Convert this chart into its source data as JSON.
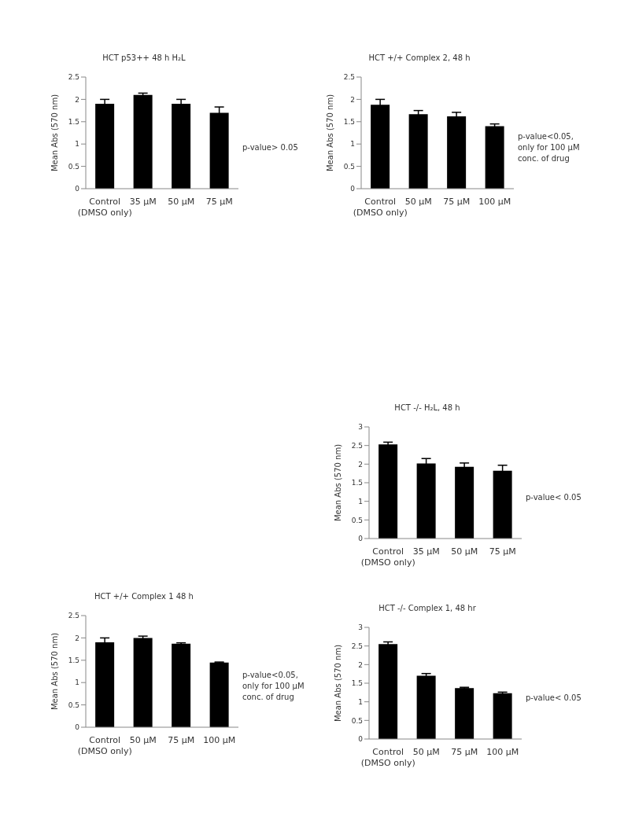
{
  "chart_data": [
    {
      "type": "bar",
      "title": "HCT p53++ 48 h H₂L",
      "ylabel": "Mean Abs (570 nm)",
      "categories": [
        "Control (DMSO only)",
        "35 µM",
        "50 µM",
        "75 µM"
      ],
      "values": [
        1.9,
        2.1,
        1.9,
        1.7
      ],
      "errors": [
        0.1,
        0.04,
        0.1,
        0.13
      ],
      "color": "#000000",
      "ylim": [
        0,
        2.5
      ],
      "yticks": [
        0,
        0.5,
        1,
        1.5,
        2,
        2.5
      ],
      "grid": false,
      "legend": false,
      "annotations": [
        "p-value> 0.05"
      ]
    },
    {
      "type": "bar",
      "title": "HCT +/+ Complex  2, 48 h",
      "ylabel": "Mean Abs (570 nm)",
      "categories": [
        "Control (DMSO only)",
        "50 µM",
        "75 µM",
        "100 µM"
      ],
      "values": [
        1.88,
        1.67,
        1.62,
        1.4
      ],
      "errors": [
        0.12,
        0.08,
        0.09,
        0.05
      ],
      "color": "#000000",
      "ylim": [
        0,
        2.5
      ],
      "yticks": [
        0,
        0.5,
        1,
        1.5,
        2,
        2.5
      ],
      "grid": false,
      "legend": false,
      "annotations": [
        "p-value<0.05, only for 100 µM conc. of drug"
      ]
    },
    {
      "type": "bar",
      "title": "HCT -/- H₂L,  48 h",
      "ylabel": "Mean Abs (570 nm)",
      "categories": [
        "Control (DMSO only)",
        "35 µM",
        "50 µM",
        "75 µM"
      ],
      "values": [
        2.53,
        2.02,
        1.93,
        1.82
      ],
      "errors": [
        0.06,
        0.13,
        0.1,
        0.15
      ],
      "color": "#000000",
      "ylim": [
        0,
        3
      ],
      "yticks": [
        0,
        0.5,
        1,
        1.5,
        2,
        2.5,
        3
      ],
      "grid": false,
      "legend": false,
      "annotations": [
        "p-value< 0.05"
      ]
    },
    {
      "type": "bar",
      "title": "HCT +/+ Complex 1 48 h",
      "ylabel": "Mean Abs (570 nm)",
      "categories": [
        "Control (DMSO only)",
        "50 µM",
        "75 µM",
        "100 µM"
      ],
      "values": [
        1.9,
        2.0,
        1.87,
        1.45
      ],
      "errors": [
        0.1,
        0.04,
        0.02,
        0.01
      ],
      "color": "#000000",
      "ylim": [
        0,
        2.5
      ],
      "yticks": [
        0,
        0.5,
        1,
        1.5,
        2,
        2.5
      ],
      "grid": false,
      "legend": false,
      "annotations": [
        "p-value<0.05, only for 100 µM conc. of drug"
      ]
    },
    {
      "type": "bar",
      "title": "HCT -/- Complex 1, 48 hr",
      "ylabel": "Mean Abs (570 nm)",
      "categories": [
        "Control (DMSO only)",
        "50 µM",
        "75 µM",
        "100 µM"
      ],
      "values": [
        2.55,
        1.7,
        1.37,
        1.23
      ],
      "errors": [
        0.06,
        0.06,
        0.02,
        0.03
      ],
      "color": "#000000",
      "ylim": [
        0,
        3
      ],
      "yticks": [
        0,
        0.5,
        1,
        1.5,
        2,
        2.5,
        3
      ],
      "grid": false,
      "legend": false,
      "annotations": [
        "p-value< 0.05"
      ]
    }
  ]
}
